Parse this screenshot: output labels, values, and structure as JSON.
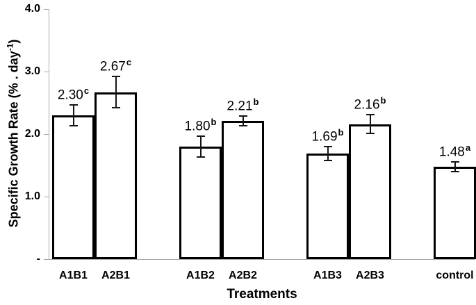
{
  "figure": {
    "background": "#ffffff",
    "axis_line_color": "#a9a9a9",
    "bar_fill_color": "#ffffff",
    "bar_border_color": "#000000",
    "error_bar_color": "#151515",
    "text_color": "#000000"
  },
  "axes": {
    "x_title": "Treatments",
    "y_title_pre": "Specific Growth Rate (% . day",
    "y_title_sup": "-1",
    "y_title_post": ")"
  },
  "chart_data": {
    "type": "bar",
    "title": "",
    "xlabel": "Treatments",
    "ylabel": "Specific Growth Rate (% . day-1)",
    "ylim": [
      0,
      4.0
    ],
    "grid": false,
    "legend": false,
    "yticks": [
      {
        "value": 4.0,
        "label": "4.0"
      },
      {
        "value": 3.0,
        "label": "3.0"
      },
      {
        "value": 2.0,
        "label": "2.0"
      },
      {
        "value": 1.0,
        "label": "1.0"
      },
      {
        "value": 0.0,
        "label": "-"
      }
    ],
    "categories": [
      "A1B1",
      "A2B1",
      "A1B2",
      "A2B2",
      "A1B3",
      "A2B3",
      "control"
    ],
    "values": [
      2.3,
      2.67,
      1.8,
      2.21,
      1.69,
      2.16,
      1.48
    ],
    "bars": [
      {
        "category": "A1B1",
        "value": 2.3,
        "value_label": "2.30",
        "error": 0.17,
        "sig_letter": "c"
      },
      {
        "category": "A2B1",
        "value": 2.67,
        "value_label": "2.67",
        "error": 0.25,
        "sig_letter": "c"
      },
      {
        "category": "A1B2",
        "value": 1.8,
        "value_label": "1.80",
        "error": 0.17,
        "sig_letter": "b"
      },
      {
        "category": "A2B2",
        "value": 2.21,
        "value_label": "2.21",
        "error": 0.08,
        "sig_letter": "b"
      },
      {
        "category": "A1B3",
        "value": 1.69,
        "value_label": "1.69",
        "error": 0.11,
        "sig_letter": "b"
      },
      {
        "category": "A2B3",
        "value": 2.16,
        "value_label": "2.16",
        "error": 0.15,
        "sig_letter": "b"
      },
      {
        "category": "control",
        "value": 1.48,
        "value_label": "1.48",
        "error": 0.08,
        "sig_letter": "a"
      }
    ]
  }
}
